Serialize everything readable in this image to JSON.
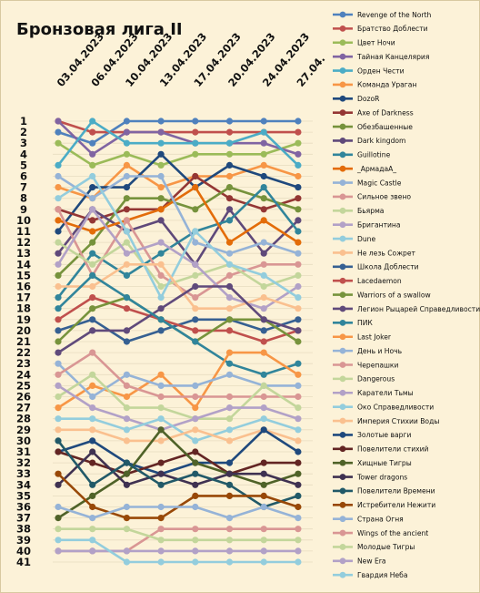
{
  "chart_data": {
    "type": "line",
    "title": "Бронзовая лига II",
    "xlabel": "",
    "ylabel": "",
    "y_reversed": true,
    "ylim": [
      1,
      41
    ],
    "grid": "horizontal",
    "legend_position": "right",
    "x": [
      "03.04.2023",
      "06.04.2023",
      "10.04.2023",
      "13.04.2023",
      "17.04.2023",
      "20.04.2023",
      "24.04.2023",
      "27.04."
    ],
    "y_ticks": [
      1,
      2,
      3,
      4,
      5,
      6,
      7,
      8,
      9,
      10,
      11,
      12,
      13,
      14,
      15,
      16,
      17,
      18,
      19,
      20,
      21,
      22,
      23,
      24,
      25,
      26,
      27,
      28,
      29,
      30,
      31,
      32,
      33,
      34,
      35,
      36,
      37,
      38,
      39,
      40,
      41
    ],
    "series": [
      {
        "name": "Revenge of the North",
        "color": "#4f81bd",
        "values": [
          2,
          3,
          1,
          1,
          1,
          1,
          1,
          1
        ]
      },
      {
        "name": "Братство Доблести",
        "color": "#c0504d",
        "values": [
          1,
          2,
          2,
          2,
          2,
          2,
          2,
          2
        ]
      },
      {
        "name": "Цвет Ночи",
        "color": "#9bbb59",
        "values": [
          3,
          5,
          4,
          5,
          4,
          4,
          4,
          3
        ]
      },
      {
        "name": "Тайная Канцелярия",
        "color": "#8064a2",
        "values": [
          1,
          4,
          2,
          2,
          3,
          3,
          3,
          4
        ]
      },
      {
        "name": "Орден Чести",
        "color": "#4bacc6",
        "values": [
          5,
          1,
          3,
          3,
          3,
          3,
          2,
          5
        ]
      },
      {
        "name": "Команда Ураган",
        "color": "#f79646",
        "values": [
          7,
          8,
          5,
          7,
          6,
          6,
          5,
          6
        ]
      },
      {
        "name": "DozoR",
        "color": "#1f497d",
        "values": [
          11,
          7,
          7,
          4,
          7,
          5,
          6,
          7
        ]
      },
      {
        "name": "Axe of Darkness",
        "color": "#943634",
        "values": [
          9,
          10,
          9,
          9,
          6,
          8,
          9,
          8
        ]
      },
      {
        "name": "Обезбашенные",
        "color": "#76923c",
        "values": [
          15,
          12,
          8,
          8,
          9,
          7,
          8,
          9
        ]
      },
      {
        "name": "Dark kingdom",
        "color": "#5f497a",
        "values": [
          13,
          9,
          11,
          10,
          14,
          9,
          13,
          10
        ]
      },
      {
        "name": "Guillotine",
        "color": "#31859b",
        "values": [
          17,
          13,
          15,
          13,
          11,
          10,
          7,
          11
        ]
      },
      {
        "name": "_АрмадаА_",
        "color": "#e36c09",
        "values": [
          10,
          11,
          10,
          9,
          7,
          12,
          10,
          12
        ]
      },
      {
        "name": "Magic Castle",
        "color": "#95b3d7",
        "values": [
          6,
          8,
          6,
          6,
          12,
          13,
          12,
          13
        ]
      },
      {
        "name": "Сильное звено",
        "color": "#d99694",
        "values": [
          9,
          15,
          10,
          15,
          17,
          15,
          14,
          14
        ]
      },
      {
        "name": "Бьярма",
        "color": "#c3d69b",
        "values": [
          12,
          14,
          12,
          16,
          15,
          14,
          16,
          15
        ]
      },
      {
        "name": "Бригантина",
        "color": "#b2a1c7",
        "values": [
          14,
          9,
          13,
          12,
          14,
          17,
          18,
          16
        ]
      },
      {
        "name": "Dune",
        "color": "#93cddd",
        "values": [
          8,
          6,
          11,
          17,
          11,
          14,
          15,
          17
        ]
      },
      {
        "name": "Не лезь Сожрет",
        "color": "#fac08f",
        "values": [
          16,
          16,
          14,
          14,
          18,
          18,
          17,
          18
        ]
      },
      {
        "name": "Школа Доблести",
        "color": "#366092",
        "values": [
          20,
          19,
          21,
          20,
          19,
          19,
          20,
          19
        ]
      },
      {
        "name": "Lacedaemon",
        "color": "#c0504d",
        "values": [
          19,
          17,
          18,
          19,
          20,
          20,
          21,
          20
        ]
      },
      {
        "name": "Warriors of a swallow",
        "color": "#77933c",
        "values": [
          21,
          18,
          17,
          19,
          21,
          19,
          19,
          21
        ]
      },
      {
        "name": "Легион Рыцарей Справедливости",
        "color": "#604a7b",
        "values": [
          22,
          20,
          20,
          18,
          16,
          16,
          19,
          20
        ]
      },
      {
        "name": "ПИК",
        "color": "#31859b",
        "values": [
          18,
          15,
          17,
          19,
          21,
          23,
          24,
          23
        ]
      },
      {
        "name": "Last Joker",
        "color": "#f79646",
        "values": [
          27,
          25,
          26,
          24,
          27,
          22,
          22,
          24
        ]
      },
      {
        "name": "День и Ночь",
        "color": "#95b3d7",
        "values": [
          23,
          26,
          24,
          25,
          25,
          24,
          25,
          25
        ]
      },
      {
        "name": "Черепашки",
        "color": "#d99694",
        "values": [
          24,
          22,
          25,
          26,
          26,
          26,
          26,
          26
        ]
      },
      {
        "name": "Dangerous",
        "color": "#c3d69b",
        "values": [
          26,
          24,
          27,
          27,
          28,
          28,
          25,
          27
        ]
      },
      {
        "name": "Каратели Тьмы",
        "color": "#b2a1c7",
        "values": [
          25,
          27,
          28,
          29,
          28,
          27,
          27,
          28
        ]
      },
      {
        "name": "Око Справедливости",
        "color": "#93cddd",
        "values": [
          28,
          28,
          29,
          28,
          30,
          29,
          28,
          29
        ]
      },
      {
        "name": "Империя Стихии Воды",
        "color": "#fac08f",
        "values": [
          29,
          29,
          30,
          30,
          29,
          30,
          29,
          30
        ]
      },
      {
        "name": "Золотые варги",
        "color": "#1f497d",
        "values": [
          31,
          30,
          32,
          33,
          32,
          32,
          29,
          31
        ]
      },
      {
        "name": "Повелители стихий",
        "color": "#632523",
        "values": [
          31,
          32,
          33,
          32,
          31,
          33,
          32,
          32
        ]
      },
      {
        "name": "Хищные Тигры",
        "color": "#4f6228",
        "values": [
          37,
          35,
          33,
          29,
          32,
          33,
          34,
          33
        ]
      },
      {
        "name": "Tower dragons",
        "color": "#3f3151",
        "values": [
          34,
          31,
          34,
          33,
          34,
          33,
          33,
          34
        ]
      },
      {
        "name": "Повелители Времени",
        "color": "#215968",
        "values": [
          30,
          34,
          32,
          34,
          33,
          34,
          36,
          35
        ]
      },
      {
        "name": "Истребители Нежити",
        "color": "#984807",
        "values": [
          33,
          36,
          37,
          37,
          35,
          35,
          35,
          36
        ]
      },
      {
        "name": "Страна Огня",
        "color": "#95b3d7",
        "values": [
          36,
          37,
          36,
          36,
          36,
          37,
          36,
          37
        ]
      },
      {
        "name": "Wings of the ancient",
        "color": "#d99694",
        "values": [
          40,
          40,
          40,
          38,
          38,
          38,
          38,
          38
        ]
      },
      {
        "name": "Молодые Тигры",
        "color": "#c3d69b",
        "values": [
          38,
          38,
          38,
          39,
          39,
          39,
          39,
          39
        ]
      },
      {
        "name": "New Era",
        "color": "#b2a1c7",
        "values": [
          40,
          40,
          40,
          40,
          40,
          40,
          40,
          40
        ]
      },
      {
        "name": "Гвардия Неба",
        "color": "#93cddd",
        "values": [
          39,
          39,
          41,
          41,
          41,
          41,
          41,
          41
        ]
      }
    ]
  }
}
